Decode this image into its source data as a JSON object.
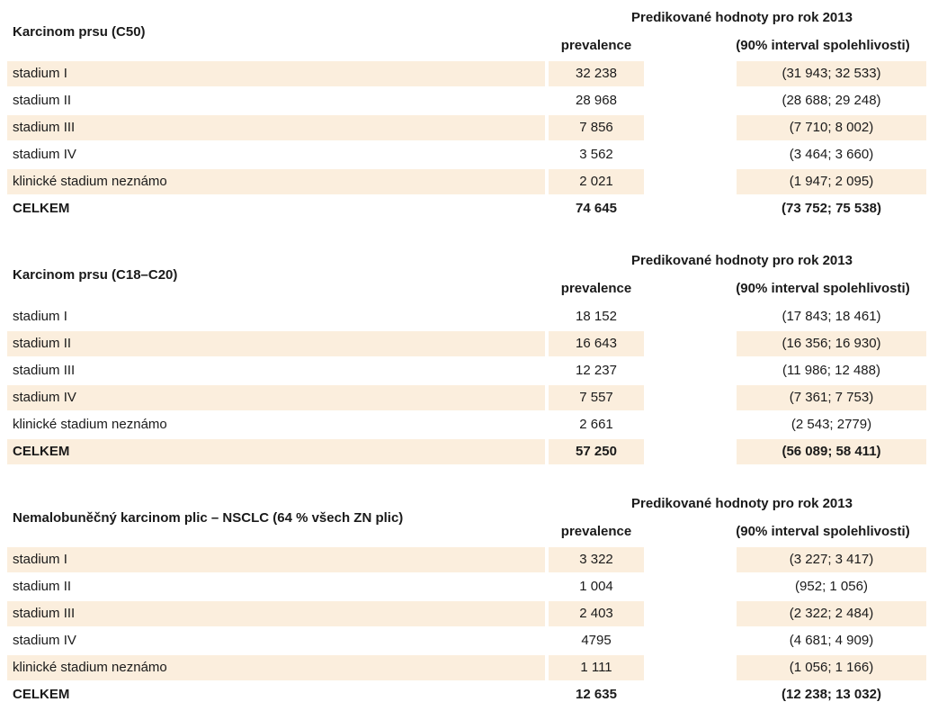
{
  "tables": [
    {
      "title": "Karcinom prsu (C50)",
      "header": "Predikované hodnoty pro rok 2013",
      "col_prevalence": "prevalence",
      "col_interval": "(90% interval spolehlivosti)",
      "rows": [
        {
          "label": "stadium I",
          "prevalence": "32 238",
          "interval": "(31 943; 32 533)"
        },
        {
          "label": "stadium II",
          "prevalence": "28 968",
          "interval": "(28 688; 29 248)"
        },
        {
          "label": "stadium III",
          "prevalence": "7 856",
          "interval": "(7 710; 8 002)"
        },
        {
          "label": "stadium IV",
          "prevalence": "3 562",
          "interval": "(3 464; 3 660)"
        },
        {
          "label": "klinické stadium neznámo",
          "prevalence": "2 021",
          "interval": "(1 947; 2 095)"
        },
        {
          "label": "CELKEM",
          "prevalence": "74 645",
          "interval": "(73 752; 75 538)"
        }
      ]
    },
    {
      "title": "Karcinom prsu (C18–C20)",
      "header": "Predikované hodnoty pro rok 2013",
      "col_prevalence": "prevalence",
      "col_interval": "(90% interval spolehlivosti)",
      "rows": [
        {
          "label": "stadium I",
          "prevalence": "18 152",
          "interval": "(17 843; 18 461)"
        },
        {
          "label": "stadium II",
          "prevalence": "16 643",
          "interval": "(16 356; 16 930)"
        },
        {
          "label": "stadium III",
          "prevalence": "12 237",
          "interval": "(11 986; 12 488)"
        },
        {
          "label": "stadium IV",
          "prevalence": "7 557",
          "interval": "(7 361; 7 753)"
        },
        {
          "label": "klinické stadium neznámo",
          "prevalence": "2 661",
          "interval": "(2 543; 2779)"
        },
        {
          "label": "CELKEM",
          "prevalence": "57 250",
          "interval": "(56 089; 58 411)"
        }
      ]
    },
    {
      "title": "Nemalobuněčný karcinom plic – NSCLC (64 % všech ZN plic)",
      "header": "Predikované hodnoty pro rok 2013",
      "col_prevalence": "prevalence",
      "col_interval": "(90% interval spolehlivosti)",
      "rows": [
        {
          "label": "stadium I",
          "prevalence": "3 322",
          "interval": "(3 227; 3 417)"
        },
        {
          "label": "stadium II",
          "prevalence": "1 004",
          "interval": "(952; 1 056)"
        },
        {
          "label": "stadium III",
          "prevalence": "2 403",
          "interval": "(2 322; 2 484)"
        },
        {
          "label": "stadium IV",
          "prevalence": "4795",
          "interval": "(4 681; 4 909)"
        },
        {
          "label": "klinické stadium neznámo",
          "prevalence": "1 111",
          "interval": "(1 056; 1 166)"
        },
        {
          "label": "CELKEM",
          "prevalence": "12 635",
          "interval": "(12 238; 13 032)"
        }
      ]
    }
  ],
  "colors": {
    "row_shade": "#fbeedd",
    "text": "#1a1a1a"
  }
}
